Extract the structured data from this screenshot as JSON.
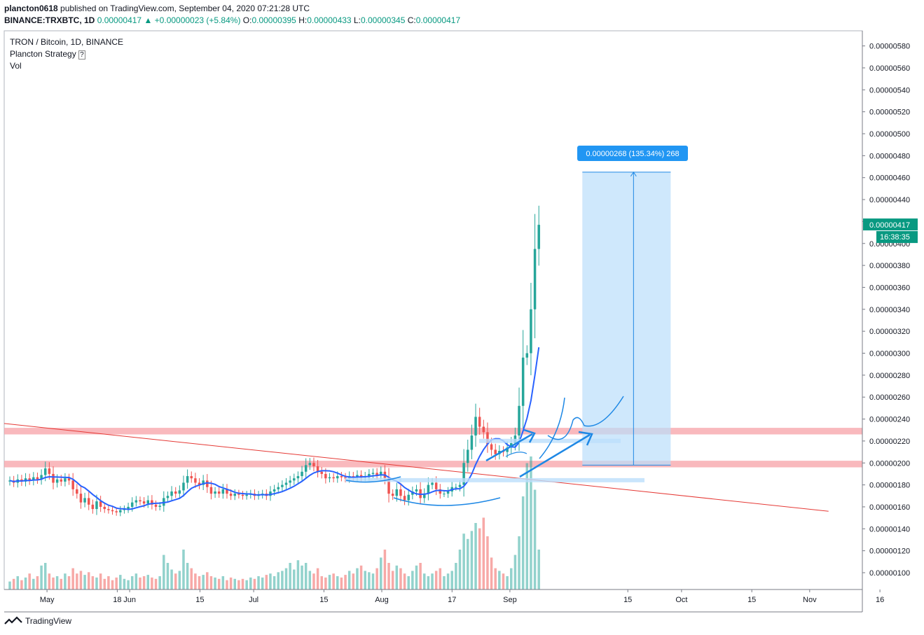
{
  "header": {
    "author": "plancton0618",
    "published_text": "published on TradingView.com, September 04, 2020 07:21:28 UTC",
    "symbol": "BINANCE:TRXBTC, 1D",
    "last": "0.00000417",
    "change": "+0.00000023 (+5.84%)",
    "o_label": "O:",
    "o": "0.00000395",
    "h_label": "H:",
    "h": "0.00000433",
    "l_label": "L:",
    "l": "0.00000345",
    "c_label": "C:",
    "c": "0.00000417"
  },
  "legend": {
    "line1": "TRON / Bitcoin, 1D, BINANCE",
    "line2": "Plancton Strategy",
    "line3": "Vol"
  },
  "footer": {
    "brand": "TradingView"
  },
  "colors": {
    "up": "#26a69a",
    "down": "#ef5350",
    "ma": "#2962ff",
    "resistance": "#f7a1a7",
    "trendline": "#e53935",
    "projection_fill": "#bbdefb",
    "price_label": "#089981",
    "annotation": "#1e88e5"
  },
  "chart_data": {
    "type": "candlestick",
    "y_unit": "BTC",
    "ylim": [
      8.6e-07,
      5.94e-06
    ],
    "y_ticks": [
      "0.00000100",
      "0.00000120",
      "0.00000140",
      "0.00000160",
      "0.00000180",
      "0.00000200",
      "0.00000220",
      "0.00000240",
      "0.00000260",
      "0.00000280",
      "0.00000300",
      "0.00000320",
      "0.00000340",
      "0.00000360",
      "0.00000380",
      "0.00000400",
      "0.00000420",
      "0.00000440",
      "0.00000460",
      "0.00000480",
      "0.00000500",
      "0.00000520",
      "0.00000540",
      "0.00000560",
      "0.00000580"
    ],
    "x_ticks": [
      "May",
      "18",
      "Jun",
      "15",
      "Jul",
      "15",
      "Aug",
      "17",
      "Sep",
      "15",
      "Oct",
      "15",
      "Nov",
      "16"
    ],
    "x_tick_days": [
      9,
      26,
      29,
      46,
      59,
      76,
      90,
      107,
      121,
      138,
      151,
      168,
      182,
      199
    ],
    "x_days_range": [
      0,
      210
    ],
    "last_price_label": "0.00000417",
    "countdown_label": "16:38:35",
    "projection_label": "0.00000268 (135.34%) 268",
    "projection": {
      "from_day": 127,
      "to_day": 146,
      "low": 1.98e-06,
      "high": 4.65e-06
    },
    "resistance_zones": [
      {
        "low": 2.26e-06,
        "high": 2.32e-06
      },
      {
        "low": 1.96e-06,
        "high": 2.02e-06
      }
    ],
    "trendline": {
      "from": [
        0,
        2.36e-06
      ],
      "to": [
        193,
        1.56e-06
      ]
    },
    "closes": [
      1.84e-06,
      1.82e-06,
      1.85e-06,
      1.83e-06,
      1.86e-06,
      1.84e-06,
      1.87e-06,
      1.85e-06,
      1.89e-06,
      1.95e-06,
      1.9e-06,
      1.82e-06,
      1.85e-06,
      1.83e-06,
      1.86e-06,
      1.84e-06,
      1.76e-06,
      1.72e-06,
      1.64e-06,
      1.68e-06,
      1.62e-06,
      1.58e-06,
      1.65e-06,
      1.6e-06,
      1.58e-06,
      1.57e-06,
      1.56e-06,
      1.55e-06,
      1.57e-06,
      1.58e-06,
      1.6e-06,
      1.64e-06,
      1.66e-06,
      1.65e-06,
      1.63e-06,
      1.66e-06,
      1.62e-06,
      1.6e-06,
      1.61e-06,
      1.68e-06,
      1.7e-06,
      1.74e-06,
      1.72e-06,
      1.75e-06,
      1.82e-06,
      1.88e-06,
      1.86e-06,
      1.82e-06,
      1.8e-06,
      1.84e-06,
      1.78e-06,
      1.72e-06,
      1.74e-06,
      1.72e-06,
      1.76e-06,
      1.72e-06,
      1.7e-06,
      1.72e-06,
      1.71e-06,
      1.7e-06,
      1.71e-06,
      1.72e-06,
      1.7e-06,
      1.71e-06,
      1.72e-06,
      1.7e-06,
      1.74e-06,
      1.76e-06,
      1.78e-06,
      1.8e-06,
      1.82e-06,
      1.84e-06,
      1.86e-06,
      1.88e-06,
      1.92e-06,
      1.98e-06,
      2e-06,
      1.97e-06,
      1.92e-06,
      1.9e-06,
      1.86e-06,
      1.87e-06,
      1.86e-06,
      1.88e-06,
      1.87e-06,
      1.86e-06,
      1.88e-06,
      1.87e-06,
      1.89e-06,
      1.87e-06,
      1.88e-06,
      1.9e-06,
      1.91e-06,
      1.89e-06,
      1.92e-06,
      1.86e-06,
      1.72e-06,
      1.7e-06,
      1.76e-06,
      1.7e-06,
      1.66e-06,
      1.71e-06,
      1.74e-06,
      1.76e-06,
      1.68e-06,
      1.72e-06,
      1.8e-06,
      1.82e-06,
      1.76e-06,
      1.72e-06,
      1.72e-06,
      1.74e-06,
      1.78e-06,
      1.78e-06,
      1.8e-06,
      2e-06,
      2.12e-06,
      2.25e-06,
      2.42e-06,
      2.33e-06,
      2.28e-06,
      2.17e-06,
      2.12e-06,
      2.08e-06,
      2.11e-06,
      2.1e-06,
      2.14e-06,
      2.18e-06,
      2.25e-06,
      2.52e-06,
      2.96e-06,
      3e-06,
      3.4e-06,
      3.95e-06,
      4.17e-06
    ],
    "volume_scale": [
      0.06,
      0.08,
      0.1,
      0.07,
      0.09,
      0.12,
      0.08,
      0.1,
      0.18,
      0.2,
      0.12,
      0.09,
      0.1,
      0.08,
      0.12,
      0.1,
      0.16,
      0.12,
      0.14,
      0.11,
      0.13,
      0.1,
      0.09,
      0.12,
      0.08,
      0.1,
      0.07,
      0.09,
      0.11,
      0.08,
      0.07,
      0.1,
      0.12,
      0.09,
      0.1,
      0.11,
      0.09,
      0.08,
      0.1,
      0.26,
      0.2,
      0.15,
      0.12,
      0.14,
      0.3,
      0.2,
      0.16,
      0.12,
      0.1,
      0.11,
      0.13,
      0.1,
      0.09,
      0.08,
      0.1,
      0.07,
      0.09,
      0.08,
      0.07,
      0.08,
      0.07,
      0.09,
      0.08,
      0.1,
      0.09,
      0.11,
      0.12,
      0.1,
      0.13,
      0.14,
      0.16,
      0.2,
      0.15,
      0.22,
      0.18,
      0.2,
      0.14,
      0.12,
      0.16,
      0.1,
      0.09,
      0.11,
      0.12,
      0.1,
      0.09,
      0.11,
      0.14,
      0.12,
      0.16,
      0.18,
      0.14,
      0.13,
      0.12,
      0.16,
      0.24,
      0.3,
      0.2,
      0.14,
      0.18,
      0.16,
      0.12,
      0.1,
      0.14,
      0.18,
      0.2,
      0.12,
      0.1,
      0.12,
      0.14,
      0.16,
      0.1,
      0.12,
      0.14,
      0.2,
      0.3,
      0.42,
      0.38,
      0.44,
      0.5,
      0.46,
      0.54,
      0.4,
      0.24,
      0.16,
      0.14,
      0.12,
      0.1,
      0.16,
      0.26,
      0.4,
      0.7,
      0.95,
      1.0,
      0.75,
      0.3
    ]
  }
}
